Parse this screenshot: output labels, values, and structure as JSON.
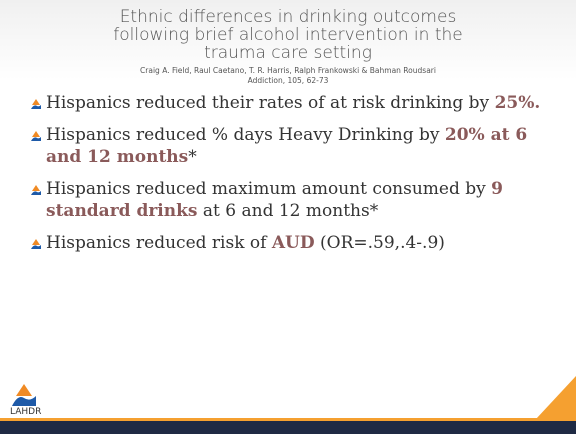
{
  "slide": {
    "title": "Ethnic differences in drinking outcomes following brief alcohol intervention in the trauma care setting",
    "authors": "Craig A. Field, Raul Caetano, T. R. Harris, Ralph Frankowski & Bahman Roudsari",
    "citation": "Addiction, 105, 62-73",
    "bullets": [
      {
        "segments": [
          {
            "text": "Hispanics reduced their rates of at risk drinking by ",
            "emphasis": false
          },
          {
            "text": "25%.",
            "emphasis": true
          }
        ]
      },
      {
        "segments": [
          {
            "text": "Hispanics reduced % days Heavy Drinking by ",
            "emphasis": false
          },
          {
            "text": "20% at 6 and 12 months",
            "emphasis": true
          },
          {
            "text": "*",
            "emphasis": false
          }
        ]
      },
      {
        "segments": [
          {
            "text": "Hispanics reduced maximum amount consumed by ",
            "emphasis": false
          },
          {
            "text": "9 standard drinks",
            "emphasis": true
          },
          {
            "text": " at 6 and 12 months*",
            "emphasis": false
          }
        ]
      },
      {
        "segments": [
          {
            "text": "Hispanics reduced risk of ",
            "emphasis": false
          },
          {
            "text": "AUD",
            "emphasis": true
          },
          {
            "text": " (OR=.59,.4-.9)",
            "emphasis": false
          }
        ]
      }
    ],
    "logo": "LAHDR"
  }
}
